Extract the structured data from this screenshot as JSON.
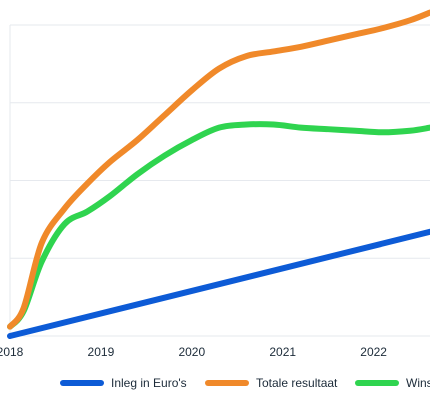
{
  "chart_data": {
    "type": "line",
    "x_ticks": [
      "2018",
      "2019",
      "2020",
      "2021",
      "2022"
    ],
    "x_domain": [
      2018.0,
      2022.62
    ],
    "ylim": [
      0,
      100
    ],
    "grid": true,
    "legend_position": "bottom",
    "series": [
      {
        "name": "Inleg in Euro's",
        "color": "#0d5bd6",
        "points": [
          [
            2018.0,
            0
          ],
          [
            2022.62,
            33.5
          ]
        ]
      },
      {
        "name": "Totale resultaat",
        "color": "#f0892a",
        "points": [
          [
            2018.0,
            3
          ],
          [
            2018.15,
            9
          ],
          [
            2018.35,
            30
          ],
          [
            2018.6,
            41
          ],
          [
            2018.85,
            49
          ],
          [
            2019.1,
            56
          ],
          [
            2019.4,
            63
          ],
          [
            2019.7,
            71
          ],
          [
            2020.0,
            79
          ],
          [
            2020.3,
            86
          ],
          [
            2020.6,
            90
          ],
          [
            2020.9,
            91.5
          ],
          [
            2021.2,
            93
          ],
          [
            2021.5,
            95
          ],
          [
            2021.8,
            97
          ],
          [
            2022.1,
            99
          ],
          [
            2022.4,
            101.5
          ],
          [
            2022.62,
            104
          ]
        ]
      },
      {
        "name": "Winst",
        "color": "#2fd44f",
        "points": [
          [
            2018.0,
            3
          ],
          [
            2018.15,
            8
          ],
          [
            2018.35,
            24
          ],
          [
            2018.6,
            36
          ],
          [
            2018.85,
            40
          ],
          [
            2019.1,
            45
          ],
          [
            2019.4,
            52
          ],
          [
            2019.7,
            58
          ],
          [
            2020.0,
            63
          ],
          [
            2020.3,
            67
          ],
          [
            2020.6,
            68
          ],
          [
            2020.9,
            68
          ],
          [
            2021.2,
            67
          ],
          [
            2021.5,
            66.5
          ],
          [
            2021.8,
            66
          ],
          [
            2022.1,
            65.5
          ],
          [
            2022.4,
            66
          ],
          [
            2022.62,
            67
          ]
        ]
      }
    ]
  }
}
